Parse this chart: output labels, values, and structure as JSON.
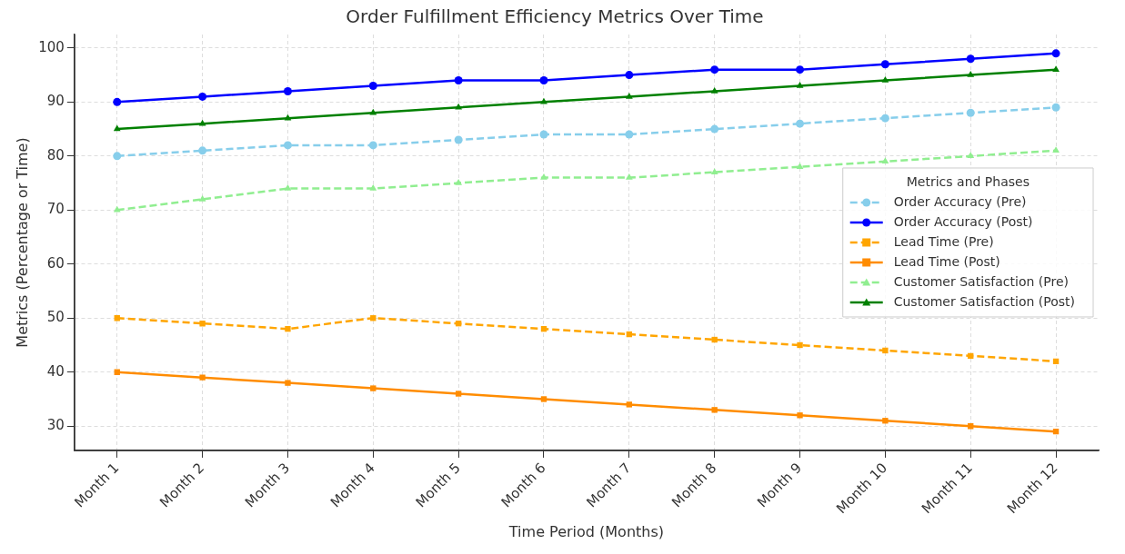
{
  "chart_data": {
    "type": "line",
    "title": "Order Fulfillment Efficiency Metrics Over Time",
    "xlabel": "Time Period (Months)",
    "ylabel": "Metrics (Percentage or Time)",
    "legend_title": "Metrics and Phases",
    "categories": [
      "Month 1",
      "Month 2",
      "Month 3",
      "Month 4",
      "Month 5",
      "Month 6",
      "Month 7",
      "Month 8",
      "Month 9",
      "Month 10",
      "Month 11",
      "Month 12"
    ],
    "series": [
      {
        "name": "Order Accuracy (Pre)",
        "color": "#87ceeb",
        "marker": "circle",
        "line_style": "dashed",
        "values": [
          80,
          81,
          82,
          82,
          83,
          84,
          84,
          85,
          86,
          87,
          88,
          89
        ]
      },
      {
        "name": "Order Accuracy (Post)",
        "color": "#0000ff",
        "marker": "circle",
        "line_style": "solid",
        "values": [
          90,
          91,
          92,
          93,
          94,
          94,
          95,
          96,
          96,
          97,
          98,
          99
        ]
      },
      {
        "name": "Lead Time (Pre)",
        "color": "#ffa500",
        "marker": "square",
        "line_style": "dashed",
        "values": [
          50,
          49,
          48,
          50,
          49,
          48,
          47,
          46,
          45,
          44,
          43,
          42
        ]
      },
      {
        "name": "Lead Time (Post)",
        "color": "#ff8c00",
        "marker": "square",
        "line_style": "solid",
        "values": [
          40,
          39,
          38,
          37,
          36,
          35,
          34,
          33,
          32,
          31,
          30,
          29
        ]
      },
      {
        "name": "Customer Satisfaction (Pre)",
        "color": "#90ee90",
        "marker": "triangle",
        "line_style": "dashed",
        "values": [
          70,
          72,
          74,
          74,
          75,
          76,
          76,
          77,
          78,
          79,
          80,
          81
        ]
      },
      {
        "name": "Customer Satisfaction (Post)",
        "color": "#008000",
        "marker": "triangle",
        "line_style": "solid",
        "values": [
          85,
          86,
          87,
          88,
          89,
          90,
          91,
          92,
          93,
          94,
          95,
          96
        ]
      }
    ],
    "ylim": [
      25.5,
      102.5
    ],
    "yticks": [
      30,
      40,
      50,
      60,
      70,
      80,
      90,
      100
    ],
    "grid": true,
    "legend": "center right"
  }
}
